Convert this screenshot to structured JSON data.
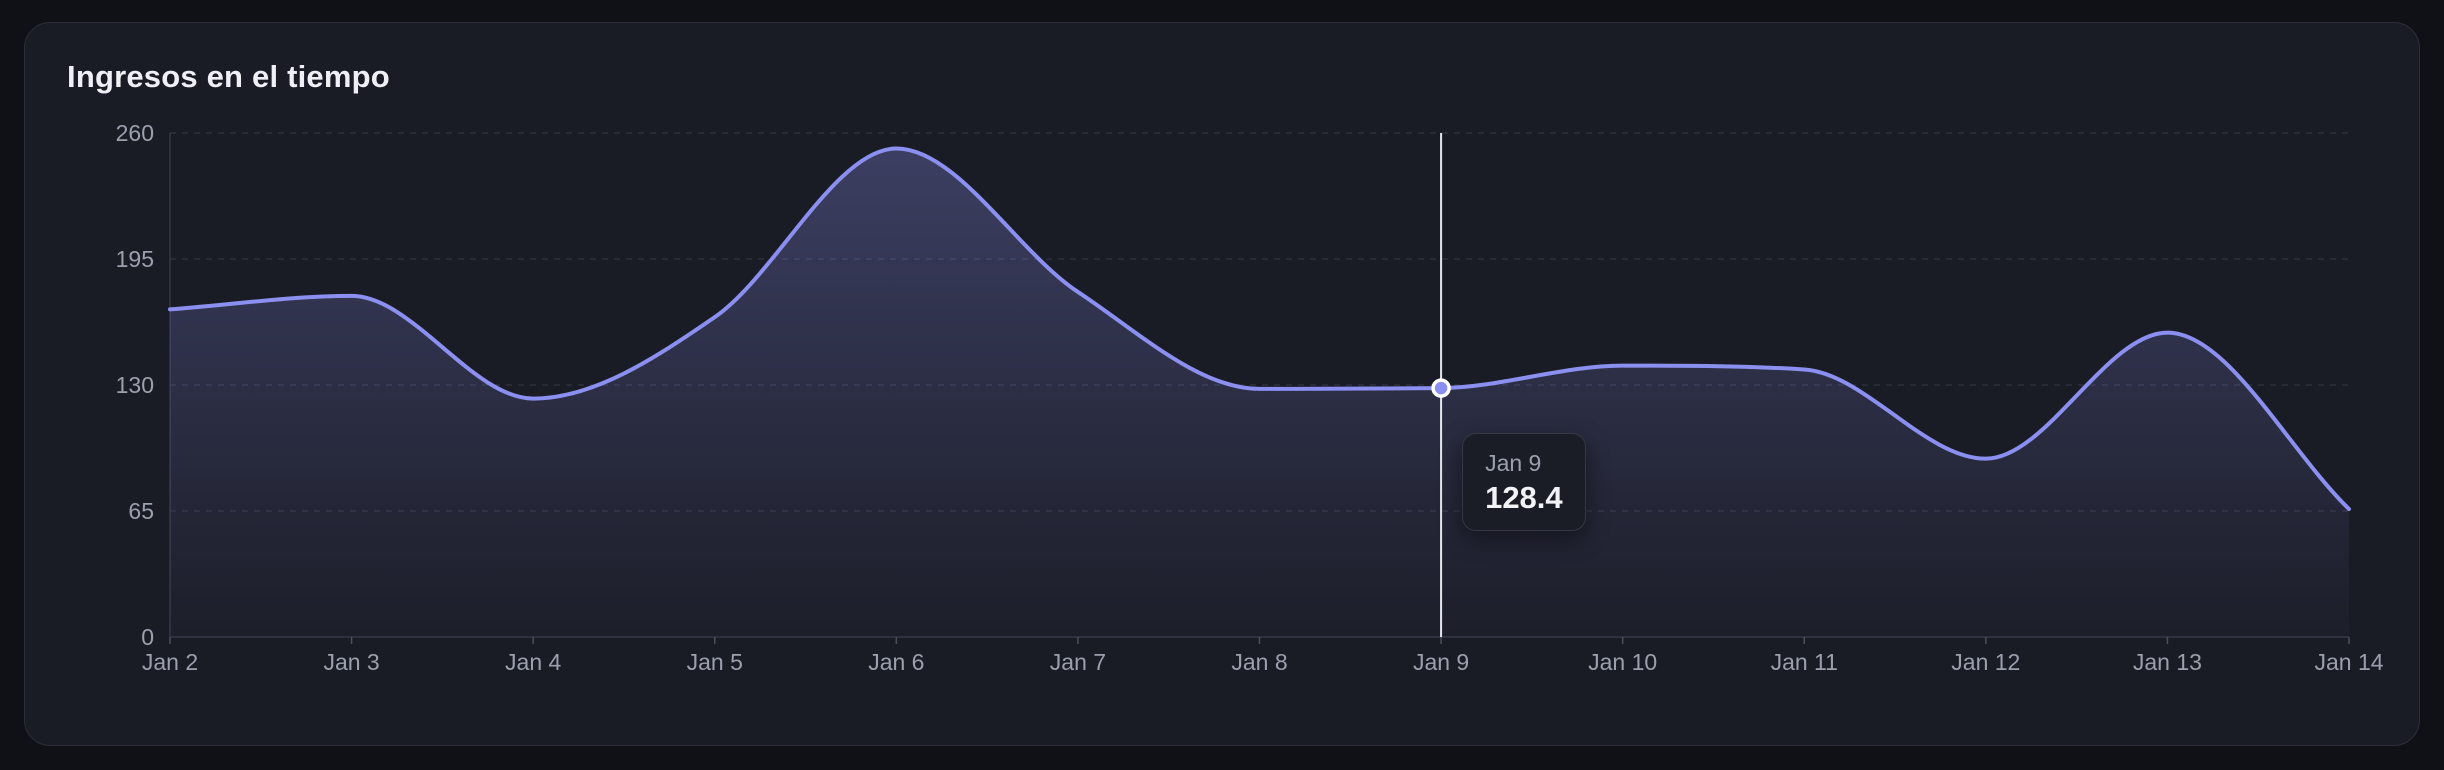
{
  "card": {
    "title": "Ingresos en el tiempo"
  },
  "colors": {
    "background": "#0f1117",
    "card": "#1a1c25",
    "line": "#8b8ff0",
    "grid": "#2c2f3c",
    "axis_text": "#9aa0ad",
    "crosshair": "#e6e7ee"
  },
  "tooltip": {
    "label": "Jan 9",
    "value": "128.4"
  },
  "chart_data": {
    "type": "area",
    "title": "Ingresos en el tiempo",
    "xlabel": "",
    "ylabel": "",
    "categories": [
      "Jan 2",
      "Jan 3",
      "Jan 4",
      "Jan 5",
      "Jan 6",
      "Jan 7",
      "Jan 8",
      "Jan 9",
      "Jan 10",
      "Jan 11",
      "Jan 12",
      "Jan 13",
      "Jan 14"
    ],
    "series": [
      {
        "values": [
          169,
          176,
          123,
          165,
          252,
          178,
          128,
          128.4,
          140,
          138,
          92,
          157,
          66
        ]
      }
    ],
    "ylim": [
      0,
      260
    ],
    "yticks": [
      0,
      65,
      130,
      195,
      260
    ],
    "grid": true,
    "grid_style": "horizontal-dashed",
    "curve": "smooth",
    "highlight_index": 7,
    "legend": "none"
  }
}
